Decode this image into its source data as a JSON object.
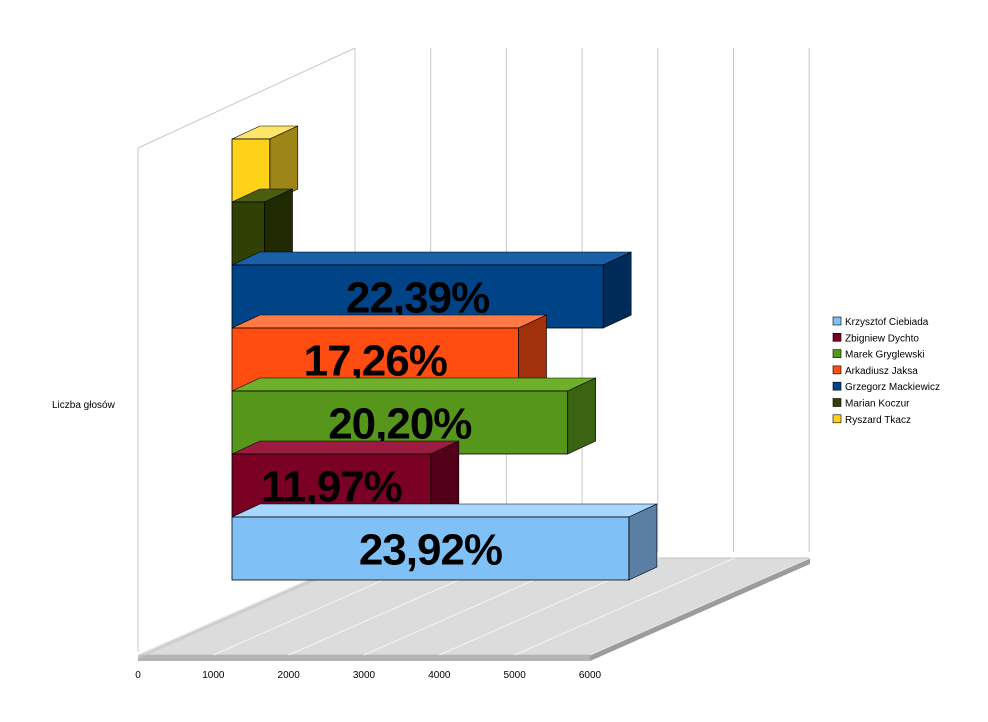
{
  "chart_data": {
    "type": "bar",
    "orientation": "horizontal",
    "three_d": true,
    "title": "",
    "category_label": "Liczba głosów",
    "xlabel": "",
    "ylabel": "",
    "xlim": [
      0,
      6000
    ],
    "x_ticks": [
      "0",
      "1000",
      "2000",
      "3000",
      "4000",
      "5000",
      "6000"
    ],
    "grid": true,
    "legend_position": "right",
    "series": [
      {
        "name": "Krzysztof Ciebiada",
        "value": 5250,
        "label": "23,92%",
        "color": "#7fc0f6",
        "side_color": "#5a7fa3",
        "top_color": "#a8d8ff"
      },
      {
        "name": "Zbigniew Dychto",
        "value": 2630,
        "label": "11,97%",
        "color": "#7a0024",
        "side_color": "#520018",
        "top_color": "#9b1c40"
      },
      {
        "name": "Marek Gryglewski",
        "value": 4440,
        "label": "20,20%",
        "color": "#56971b",
        "side_color": "#3a6412",
        "top_color": "#6fb02a"
      },
      {
        "name": "Arkadiusz Jaksa",
        "value": 3790,
        "label": "17,26%",
        "color": "#ff4c11",
        "side_color": "#a0310a",
        "top_color": "#ff7a45"
      },
      {
        "name": "Grzegorz Mackiewicz",
        "value": 4910,
        "label": "22,39%",
        "color": "#004387",
        "side_color": "#002b58",
        "top_color": "#1a5fa8"
      },
      {
        "name": "Marian Koczur",
        "value": 430,
        "label": "",
        "color": "#314005",
        "side_color": "#1f2a03",
        "top_color": "#4a5e10"
      },
      {
        "name": "Ryszard Tkacz",
        "value": 500,
        "label": "",
        "color": "#ffd21a",
        "side_color": "#9d8517",
        "top_color": "#ffe46a"
      }
    ]
  }
}
